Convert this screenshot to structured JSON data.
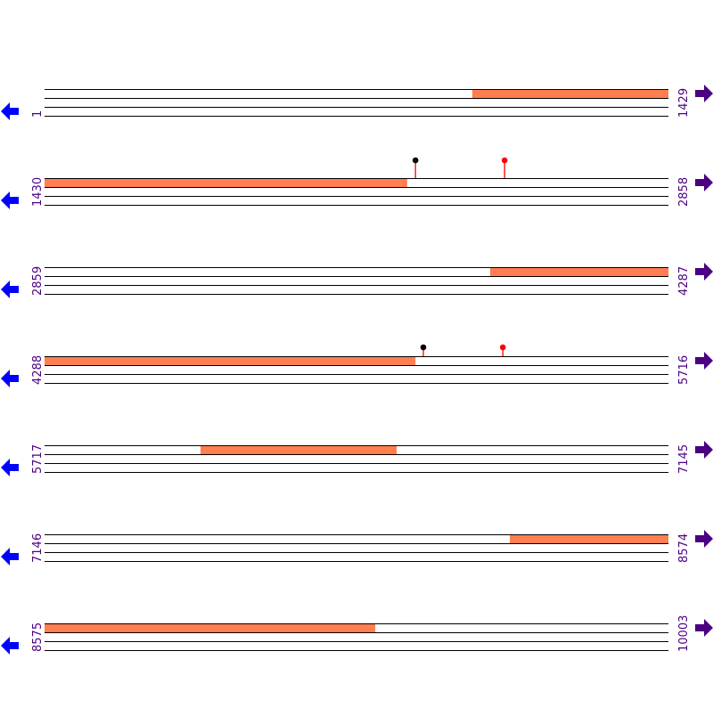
{
  "colors": {
    "feature": "#FF7F50",
    "strand_line": "#000000",
    "label": "#4B0082",
    "left_arrow": "#0000FF",
    "right_arrow": "#4B0082",
    "marker_black": "#000000",
    "marker_red": "#FF0000"
  },
  "rows": [
    {
      "start": 1,
      "end": 1429,
      "features": [
        {
          "start": 980,
          "end": 1429
        }
      ],
      "markers": []
    },
    {
      "start": 1430,
      "end": 2858,
      "features": [
        {
          "start": 1430,
          "end": 2260
        }
      ],
      "markers": [
        {
          "pos": 2279,
          "color": "black",
          "height": "tall"
        },
        {
          "pos": 2483,
          "color": "red",
          "height": "tall"
        }
      ]
    },
    {
      "start": 2859,
      "end": 4287,
      "features": [
        {
          "start": 3879,
          "end": 4287
        }
      ],
      "markers": []
    },
    {
      "start": 4288,
      "end": 5716,
      "features": [
        {
          "start": 4288,
          "end": 5137
        }
      ],
      "markers": [
        {
          "pos": 5155,
          "color": "black",
          "height": "short"
        },
        {
          "pos": 5337,
          "color": "red",
          "height": "short"
        }
      ]
    },
    {
      "start": 5717,
      "end": 7145,
      "features": [
        {
          "start": 6074,
          "end": 6523
        }
      ],
      "markers": []
    },
    {
      "start": 7146,
      "end": 8574,
      "features": [
        {
          "start": 8211,
          "end": 8574
        }
      ],
      "markers": []
    },
    {
      "start": 8575,
      "end": 10003,
      "features": [
        {
          "start": 8575,
          "end": 9332
        }
      ],
      "markers": []
    }
  ]
}
